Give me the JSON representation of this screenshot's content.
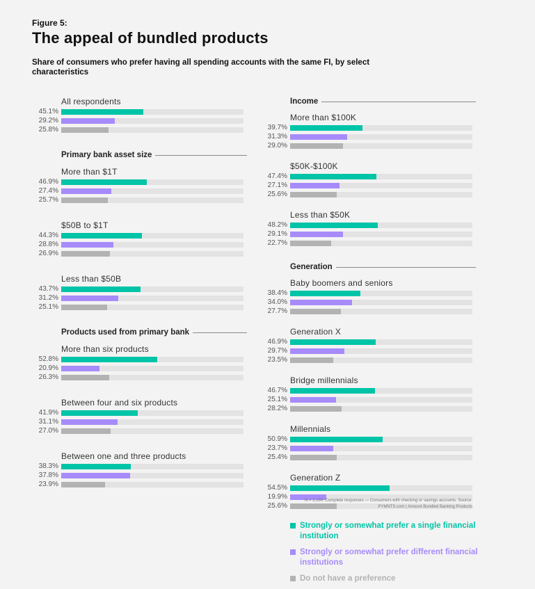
{
  "figure_label": "Figure 5:",
  "title": "The appeal of bundled products",
  "subtitle": "Share of consumers who prefer having all spending accounts with the same FI, by select characteristics",
  "colors": {
    "teal": "#00c4a7",
    "purple": "#a78bfa",
    "gray": "#b3b3b3"
  },
  "legend": [
    {
      "label": "Strongly or somewhat prefer a single financial institution",
      "color": "#00c4a7"
    },
    {
      "label": "Strongly or somewhat prefer different financial institutions",
      "color": "#a78bfa"
    },
    {
      "label": "Do not have a preference",
      "color": "#b3b3b3"
    }
  ],
  "note": "N = 2,290: Complete responses — Consumers with checking or savings accounts. Source: PYMNTS.com | Amount Bundled Banking Products",
  "chart_data": {
    "type": "bar",
    "orientation": "horizontal",
    "xlim": [
      0,
      100
    ],
    "series_colors": [
      "#00c4a7",
      "#a78bfa",
      "#b3b3b3"
    ],
    "left_column": [
      {
        "header": "",
        "groups": [
          {
            "label": "All respondents",
            "values": [
              45.1,
              29.2,
              25.8
            ],
            "labels": [
              "45.1%",
              "29.2%",
              "25.8%"
            ]
          }
        ]
      },
      {
        "header": "Primary bank asset size",
        "groups": [
          {
            "label": "More than $1T",
            "values": [
              46.9,
              27.4,
              25.7
            ],
            "labels": [
              "46.9%",
              "27.4%",
              "25.7%"
            ]
          },
          {
            "label": "$50B to $1T",
            "values": [
              44.3,
              28.8,
              26.9
            ],
            "labels": [
              "44.3%",
              "28.8%",
              "26.9%"
            ]
          },
          {
            "label": "Less than $50B",
            "values": [
              43.7,
              31.2,
              25.1
            ],
            "labels": [
              "43.7%",
              "31.2%",
              "25.1%"
            ]
          }
        ]
      },
      {
        "header": "Products used from primary bank",
        "groups": [
          {
            "label": "More than six products",
            "values": [
              52.8,
              20.9,
              26.3
            ],
            "labels": [
              "52.8%",
              "20.9%",
              "26.3%"
            ]
          },
          {
            "label": "Between four and six products",
            "values": [
              41.9,
              31.1,
              27.0
            ],
            "labels": [
              "41.9%",
              "31.1%",
              "27.0%"
            ]
          },
          {
            "label": "Between one and three products",
            "values": [
              38.3,
              37.8,
              23.9
            ],
            "labels": [
              "38.3%",
              "37.8%",
              "23.9%"
            ]
          }
        ]
      }
    ],
    "right_column": [
      {
        "header": "Income",
        "groups": [
          {
            "label": "More than $100K",
            "values": [
              39.7,
              31.3,
              29.0
            ],
            "labels": [
              "39.7%",
              "31.3%",
              "29.0%"
            ]
          },
          {
            "label": "$50K-$100K",
            "values": [
              47.4,
              27.1,
              25.6
            ],
            "labels": [
              "47.4%",
              "27.1%",
              "25.6%"
            ]
          },
          {
            "label": "Less than $50K",
            "values": [
              48.2,
              29.1,
              22.7
            ],
            "labels": [
              "48.2%",
              "29.1%",
              "22.7%"
            ]
          }
        ]
      },
      {
        "header": "Generation",
        "groups": [
          {
            "label": "Baby boomers and seniors",
            "values": [
              38.4,
              34.0,
              27.7
            ],
            "labels": [
              "38.4%",
              "34.0%",
              "27.7%"
            ]
          },
          {
            "label": "Generation X",
            "values": [
              46.9,
              29.7,
              23.5
            ],
            "labels": [
              "46.9%",
              "29.7%",
              "23.5%"
            ]
          },
          {
            "label": "Bridge millennials",
            "values": [
              46.7,
              25.1,
              28.2
            ],
            "labels": [
              "46.7%",
              "25.1%",
              "28.2%"
            ]
          },
          {
            "label": "Millennials",
            "values": [
              50.9,
              23.7,
              25.4
            ],
            "labels": [
              "50.9%",
              "23.7%",
              "25.4%"
            ]
          },
          {
            "label": "Generation Z",
            "values": [
              54.5,
              19.9,
              25.6
            ],
            "labels": [
              "54.5%",
              "19.9%",
              "25.6%"
            ]
          }
        ]
      }
    ]
  }
}
